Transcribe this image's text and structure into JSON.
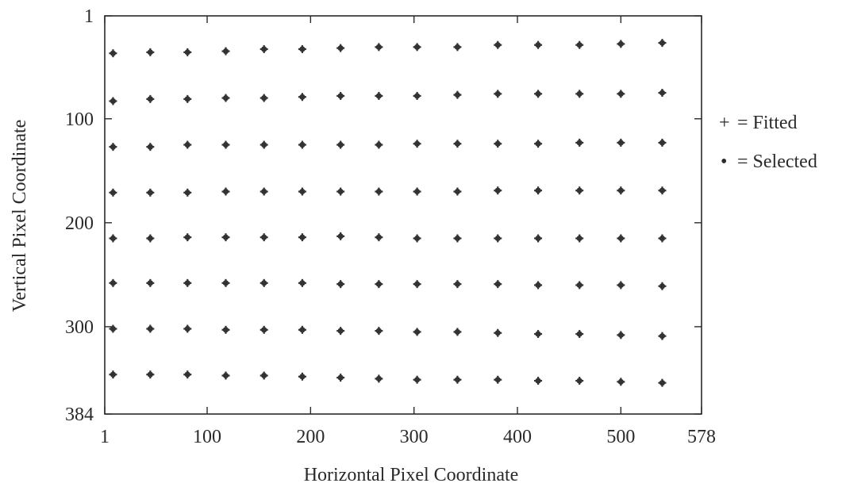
{
  "chart_data": {
    "type": "scatter",
    "title": "",
    "xlabel": "Horizontal Pixel Coordinate",
    "ylabel": "Vertical Pixel Coordinate",
    "xlim": [
      1,
      578
    ],
    "ylim": [
      1,
      384
    ],
    "y_inverted": true,
    "xticks": [
      1,
      100,
      200,
      300,
      400,
      500,
      578
    ],
    "yticks": [
      1,
      100,
      200,
      300,
      384
    ],
    "grid": false,
    "legend_position": "right",
    "legend": [
      {
        "symbol": "+",
        "text": "= Fitted"
      },
      {
        "symbol": "•",
        "text": "= Selected"
      }
    ],
    "colors": {
      "marks": "#333333",
      "axes": "#2a2a2a"
    },
    "columns_x": [
      9,
      45,
      81,
      118,
      155,
      192,
      229,
      266,
      303,
      342,
      381,
      420,
      460,
      500,
      540
    ],
    "series": [
      {
        "name": "Fitted",
        "points": [
          [
            9,
            37
          ],
          [
            45,
            36
          ],
          [
            81,
            36
          ],
          [
            118,
            35
          ],
          [
            155,
            33
          ],
          [
            192,
            33
          ],
          [
            229,
            32
          ],
          [
            266,
            31
          ],
          [
            303,
            31
          ],
          [
            342,
            31
          ],
          [
            381,
            29
          ],
          [
            420,
            29
          ],
          [
            460,
            29
          ],
          [
            500,
            28
          ],
          [
            540,
            27
          ],
          [
            9,
            83
          ],
          [
            45,
            81
          ],
          [
            81,
            81
          ],
          [
            118,
            80
          ],
          [
            155,
            80
          ],
          [
            192,
            79
          ],
          [
            229,
            78
          ],
          [
            266,
            78
          ],
          [
            303,
            78
          ],
          [
            342,
            77
          ],
          [
            381,
            76
          ],
          [
            420,
            76
          ],
          [
            460,
            76
          ],
          [
            500,
            76
          ],
          [
            540,
            75
          ],
          [
            9,
            127
          ],
          [
            45,
            127
          ],
          [
            81,
            125
          ],
          [
            118,
            125
          ],
          [
            155,
            125
          ],
          [
            192,
            125
          ],
          [
            229,
            125
          ],
          [
            266,
            125
          ],
          [
            303,
            124
          ],
          [
            342,
            124
          ],
          [
            381,
            124
          ],
          [
            420,
            124
          ],
          [
            460,
            123
          ],
          [
            500,
            123
          ],
          [
            540,
            123
          ],
          [
            9,
            171
          ],
          [
            45,
            171
          ],
          [
            81,
            171
          ],
          [
            118,
            170
          ],
          [
            155,
            170
          ],
          [
            192,
            170
          ],
          [
            229,
            170
          ],
          [
            266,
            170
          ],
          [
            303,
            170
          ],
          [
            342,
            170
          ],
          [
            381,
            169
          ],
          [
            420,
            169
          ],
          [
            460,
            169
          ],
          [
            500,
            169
          ],
          [
            540,
            169
          ],
          [
            9,
            215
          ],
          [
            45,
            215
          ],
          [
            81,
            214
          ],
          [
            118,
            214
          ],
          [
            155,
            214
          ],
          [
            192,
            214
          ],
          [
            229,
            213
          ],
          [
            266,
            214
          ],
          [
            303,
            215
          ],
          [
            342,
            215
          ],
          [
            381,
            215
          ],
          [
            420,
            215
          ],
          [
            460,
            215
          ],
          [
            500,
            215
          ],
          [
            540,
            215
          ],
          [
            9,
            258
          ],
          [
            45,
            258
          ],
          [
            81,
            258
          ],
          [
            118,
            258
          ],
          [
            155,
            258
          ],
          [
            192,
            258
          ],
          [
            229,
            259
          ],
          [
            266,
            259
          ],
          [
            303,
            259
          ],
          [
            342,
            259
          ],
          [
            381,
            259
          ],
          [
            420,
            260
          ],
          [
            460,
            260
          ],
          [
            500,
            260
          ],
          [
            540,
            261
          ],
          [
            9,
            302
          ],
          [
            45,
            302
          ],
          [
            81,
            302
          ],
          [
            118,
            303
          ],
          [
            155,
            303
          ],
          [
            192,
            303
          ],
          [
            229,
            304
          ],
          [
            266,
            304
          ],
          [
            303,
            305
          ],
          [
            342,
            305
          ],
          [
            381,
            306
          ],
          [
            420,
            307
          ],
          [
            460,
            307
          ],
          [
            500,
            308
          ],
          [
            540,
            309
          ],
          [
            9,
            346
          ],
          [
            45,
            346
          ],
          [
            81,
            346
          ],
          [
            118,
            347
          ],
          [
            155,
            347
          ],
          [
            192,
            348
          ],
          [
            229,
            349
          ],
          [
            266,
            350
          ],
          [
            303,
            351
          ],
          [
            342,
            351
          ],
          [
            381,
            351
          ],
          [
            420,
            352
          ],
          [
            460,
            352
          ],
          [
            500,
            353
          ],
          [
            540,
            354
          ]
        ]
      },
      {
        "name": "Selected",
        "points": [
          [
            9,
            37
          ],
          [
            45,
            36
          ],
          [
            81,
            36
          ],
          [
            118,
            35
          ],
          [
            155,
            33
          ],
          [
            192,
            33
          ],
          [
            229,
            32
          ],
          [
            266,
            31
          ],
          [
            303,
            31
          ],
          [
            342,
            31
          ],
          [
            381,
            29
          ],
          [
            420,
            29
          ],
          [
            460,
            29
          ],
          [
            500,
            28
          ],
          [
            540,
            27
          ],
          [
            9,
            83
          ],
          [
            45,
            81
          ],
          [
            81,
            81
          ],
          [
            118,
            80
          ],
          [
            155,
            80
          ],
          [
            192,
            79
          ],
          [
            229,
            78
          ],
          [
            266,
            78
          ],
          [
            303,
            78
          ],
          [
            342,
            77
          ],
          [
            381,
            76
          ],
          [
            420,
            76
          ],
          [
            460,
            76
          ],
          [
            500,
            76
          ],
          [
            540,
            75
          ],
          [
            9,
            127
          ],
          [
            45,
            127
          ],
          [
            81,
            125
          ],
          [
            118,
            125
          ],
          [
            155,
            125
          ],
          [
            192,
            125
          ],
          [
            229,
            125
          ],
          [
            266,
            125
          ],
          [
            303,
            124
          ],
          [
            342,
            124
          ],
          [
            381,
            124
          ],
          [
            420,
            124
          ],
          [
            460,
            123
          ],
          [
            500,
            123
          ],
          [
            540,
            123
          ],
          [
            9,
            171
          ],
          [
            45,
            171
          ],
          [
            81,
            171
          ],
          [
            118,
            170
          ],
          [
            155,
            170
          ],
          [
            192,
            170
          ],
          [
            229,
            170
          ],
          [
            266,
            170
          ],
          [
            303,
            170
          ],
          [
            342,
            170
          ],
          [
            381,
            169
          ],
          [
            420,
            169
          ],
          [
            460,
            169
          ],
          [
            500,
            169
          ],
          [
            540,
            169
          ],
          [
            9,
            215
          ],
          [
            45,
            215
          ],
          [
            81,
            214
          ],
          [
            118,
            214
          ],
          [
            155,
            214
          ],
          [
            192,
            214
          ],
          [
            229,
            213
          ],
          [
            266,
            214
          ],
          [
            303,
            215
          ],
          [
            342,
            215
          ],
          [
            381,
            215
          ],
          [
            420,
            215
          ],
          [
            460,
            215
          ],
          [
            500,
            215
          ],
          [
            540,
            215
          ],
          [
            9,
            258
          ],
          [
            45,
            258
          ],
          [
            81,
            258
          ],
          [
            118,
            258
          ],
          [
            155,
            258
          ],
          [
            192,
            258
          ],
          [
            229,
            259
          ],
          [
            266,
            259
          ],
          [
            303,
            259
          ],
          [
            342,
            259
          ],
          [
            381,
            259
          ],
          [
            420,
            260
          ],
          [
            460,
            260
          ],
          [
            500,
            260
          ],
          [
            540,
            261
          ],
          [
            9,
            302
          ],
          [
            45,
            302
          ],
          [
            81,
            302
          ],
          [
            118,
            303
          ],
          [
            155,
            303
          ],
          [
            192,
            303
          ],
          [
            229,
            304
          ],
          [
            266,
            304
          ],
          [
            303,
            305
          ],
          [
            342,
            305
          ],
          [
            381,
            306
          ],
          [
            420,
            307
          ],
          [
            460,
            307
          ],
          [
            500,
            308
          ],
          [
            540,
            309
          ],
          [
            9,
            346
          ],
          [
            45,
            346
          ],
          [
            81,
            346
          ],
          [
            118,
            347
          ],
          [
            155,
            347
          ],
          [
            192,
            348
          ],
          [
            229,
            349
          ],
          [
            266,
            350
          ],
          [
            303,
            351
          ],
          [
            342,
            351
          ],
          [
            381,
            351
          ],
          [
            420,
            352
          ],
          [
            460,
            352
          ],
          [
            500,
            353
          ],
          [
            540,
            354
          ]
        ]
      }
    ]
  }
}
